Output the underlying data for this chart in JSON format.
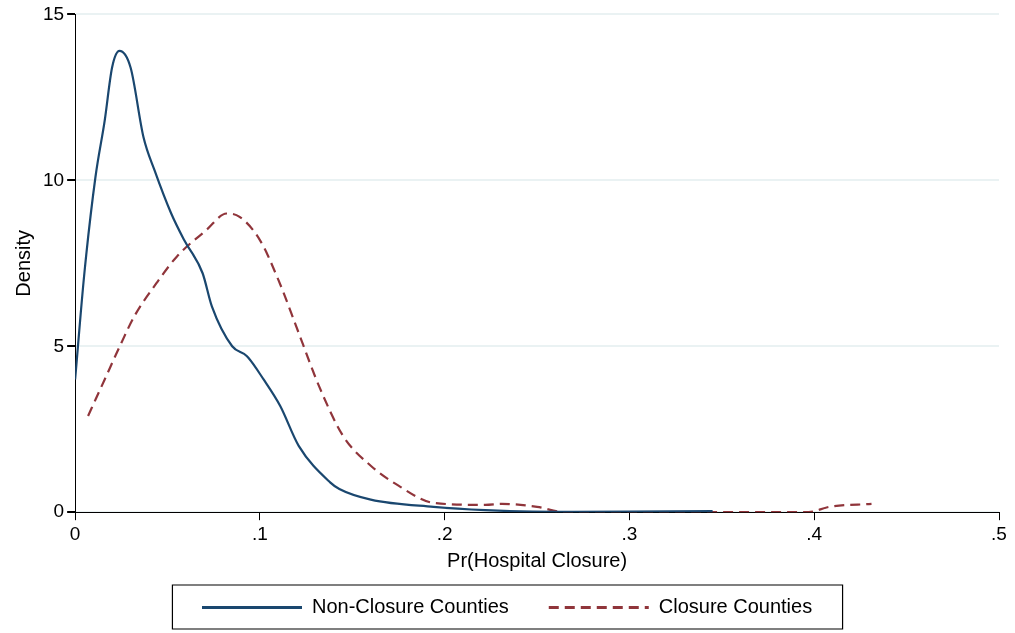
{
  "chart_data": {
    "type": "line",
    "xlabel": "Pr(Hospital Closure)",
    "ylabel": "Density",
    "xlim": [
      0,
      0.5
    ],
    "xticks": [
      0,
      {
        "value": 0.1,
        "label": ".1"
      },
      {
        "value": 0.2,
        "label": ".2"
      },
      {
        "value": 0.3,
        "label": ".3"
      },
      {
        "value": 0.4,
        "label": ".4"
      },
      {
        "value": 0.5,
        "label": ".5"
      }
    ],
    "ylim": [
      0,
      15
    ],
    "yticks": [
      0,
      5,
      10,
      15
    ],
    "grid": "y",
    "legend": "bottom",
    "marker": "none",
    "series": [
      {
        "name": "Non-Closure Counties",
        "color": "#1a476f",
        "line_style": "solid",
        "x": [
          0,
          0.005,
          0.011,
          0.016,
          0.02,
          0.024,
          0.03,
          0.037,
          0.043,
          0.052,
          0.059,
          0.069,
          0.074,
          0.085,
          0.093,
          0.102,
          0.111,
          0.121,
          0.138,
          0.143,
          0.16,
          0.194,
          0.222,
          0.26,
          0.3,
          0.345
        ],
        "values": [
          4.0,
          7.2,
          10.1,
          11.8,
          13.4,
          13.9,
          13.4,
          11.3,
          10.3,
          9.0,
          8.2,
          7.2,
          6.2,
          5.0,
          4.7,
          4.0,
          3.2,
          2.0,
          0.9,
          0.7,
          0.38,
          0.16,
          0.06,
          0.01,
          0.02,
          0.03
        ]
      },
      {
        "name": "Closure Counties",
        "color": "#90353b",
        "line_style": "dashed",
        "x": [
          0.007,
          0.016,
          0.025,
          0.032,
          0.044,
          0.055,
          0.071,
          0.082,
          0.089,
          0.1,
          0.11,
          0.121,
          0.132,
          0.145,
          0.16,
          0.175,
          0.194,
          0.222,
          0.231,
          0.25,
          0.265,
          0.33,
          0.397,
          0.408,
          0.431
        ],
        "values": [
          2.9,
          4.0,
          5.1,
          5.9,
          6.9,
          7.7,
          8.5,
          9.0,
          8.9,
          8.2,
          7.0,
          5.4,
          3.8,
          2.3,
          1.4,
          0.8,
          0.28,
          0.22,
          0.25,
          0.16,
          0,
          0,
          0,
          0.16,
          0.25
        ]
      }
    ]
  }
}
